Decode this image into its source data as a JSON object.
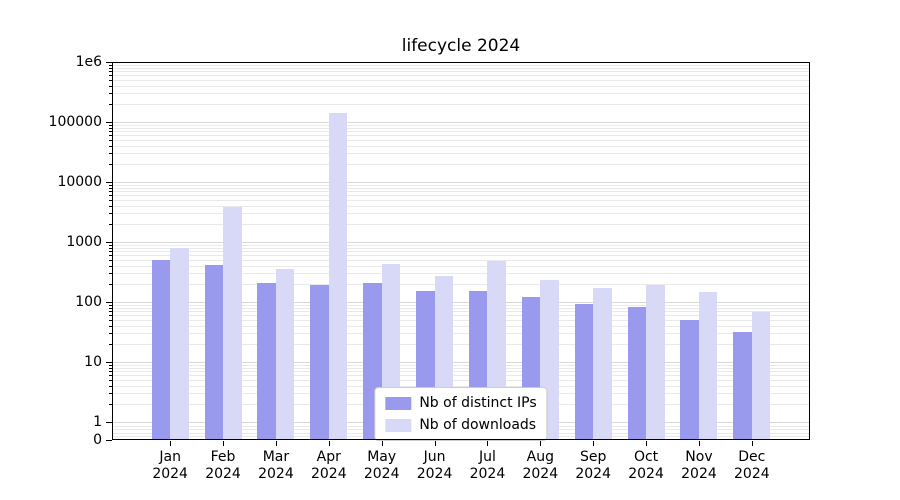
{
  "chart_data": {
    "type": "bar",
    "title": "lifecycle 2024",
    "xlabel": "",
    "ylabel": "",
    "yscale": "symlog",
    "ylim": [
      0,
      1000000
    ],
    "grid": true,
    "legend_position": "lower center",
    "categories": [
      "Jan 2024",
      "Feb 2024",
      "Mar 2024",
      "Apr 2024",
      "May 2024",
      "Jun 2024",
      "Jul 2024",
      "Aug 2024",
      "Sep 2024",
      "Oct 2024",
      "Nov 2024",
      "Dec 2024"
    ],
    "series": [
      {
        "name": "Nb of distinct IPs",
        "color": "#9999ee",
        "values": [
          500,
          410,
          205,
          190,
          210,
          155,
          155,
          120,
          92,
          82,
          50,
          32
        ]
      },
      {
        "name": "Nb of downloads",
        "color": "#d8d8f7",
        "values": [
          780,
          3800,
          360,
          140000,
          430,
          275,
          480,
          230,
          170,
          195,
          145,
          68
        ]
      }
    ],
    "yticks": [
      0,
      1,
      10,
      100,
      1000,
      10000,
      100000,
      1000000
    ],
    "ytick_labels": [
      "0",
      "1",
      "10",
      "100",
      "1000",
      "10000",
      "100000",
      "1e6"
    ]
  },
  "colors": {
    "grid_major": "#d9d9d9",
    "grid_minor": "#e9e9e9",
    "axis": "#000000",
    "background": "#ffffff"
  }
}
